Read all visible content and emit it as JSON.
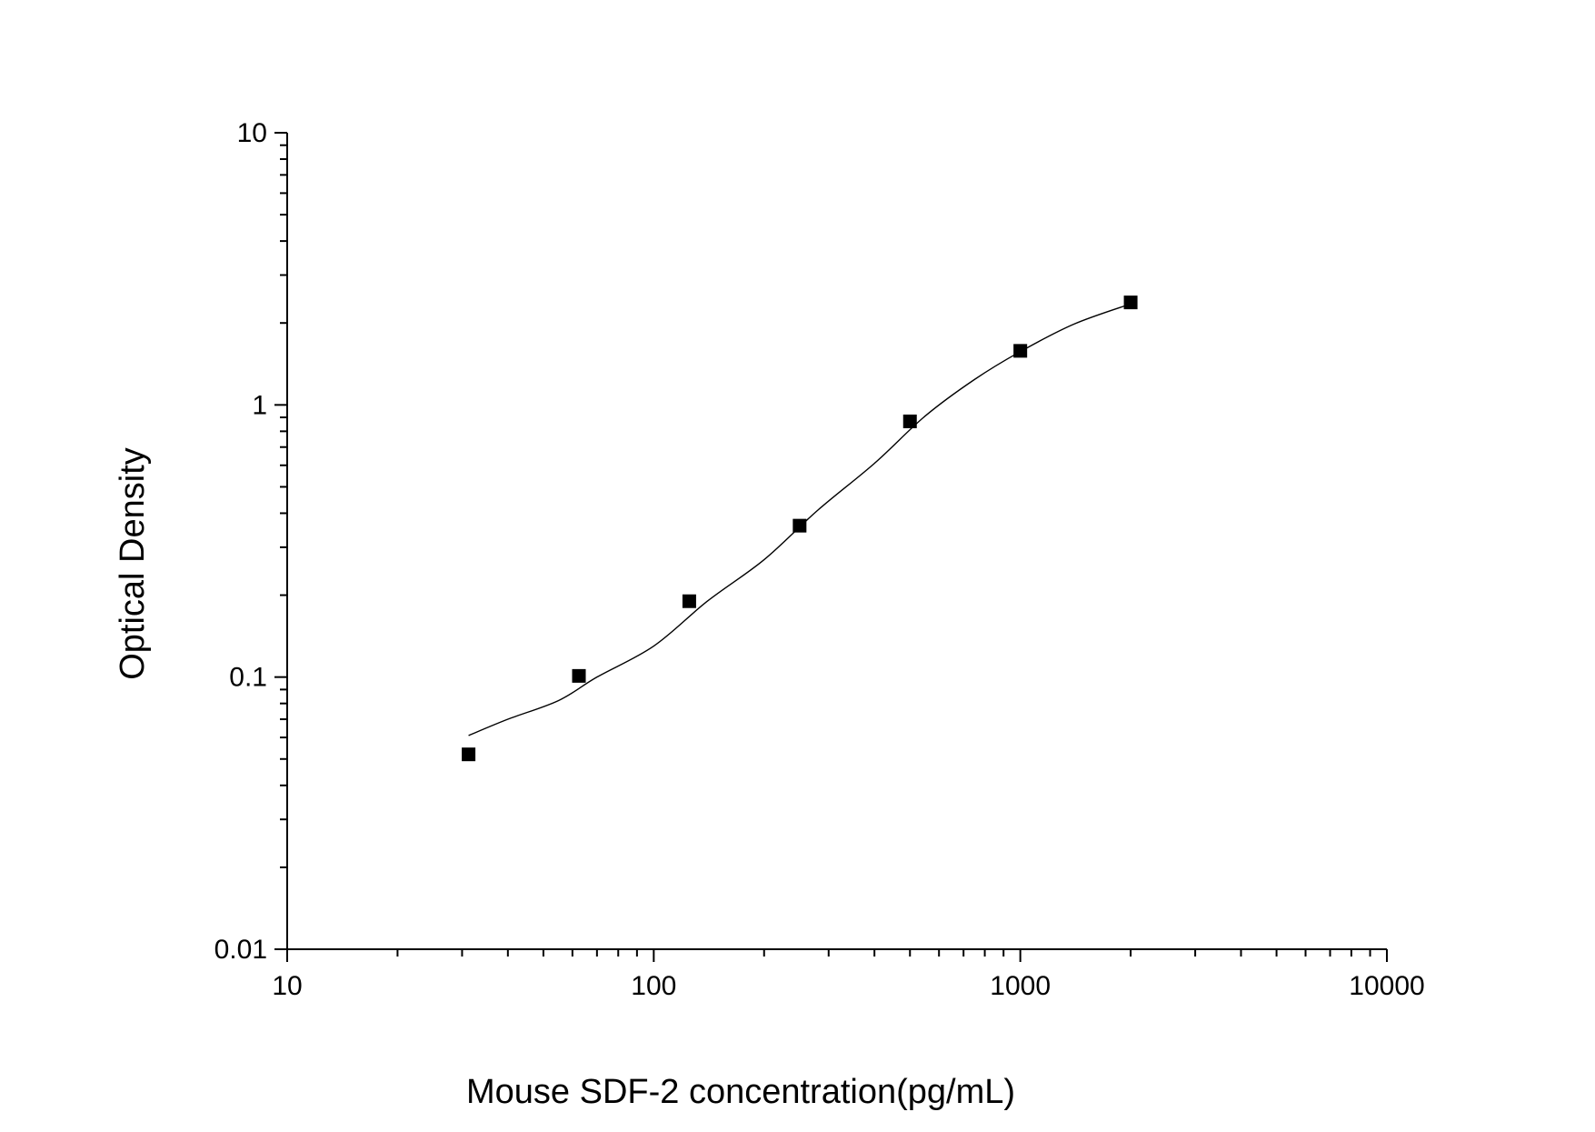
{
  "chart_data": {
    "type": "scatter",
    "xlabel": "Mouse SDF-2 concentration(pg/mL)",
    "ylabel": "Optical Density",
    "xscale": "log",
    "yscale": "log",
    "xlim": [
      10,
      10000
    ],
    "ylim": [
      0.01,
      10
    ],
    "x_ticks": [
      {
        "value": 10,
        "label": "10"
      },
      {
        "value": 100,
        "label": "100"
      },
      {
        "value": 1000,
        "label": "1000"
      },
      {
        "value": 10000,
        "label": "10000"
      }
    ],
    "y_ticks": [
      {
        "value": 0.01,
        "label": "0.01"
      },
      {
        "value": 0.1,
        "label": "0.1"
      },
      {
        "value": 1,
        "label": "1"
      },
      {
        "value": 10,
        "label": "10"
      }
    ],
    "grid": false,
    "legend": "none",
    "series": [
      {
        "marker": "square",
        "color": "#000000",
        "points": [
          {
            "x": 31.25,
            "y": 0.052
          },
          {
            "x": 62.5,
            "y": 0.101
          },
          {
            "x": 125,
            "y": 0.19
          },
          {
            "x": 250,
            "y": 0.36
          },
          {
            "x": 500,
            "y": 0.87
          },
          {
            "x": 1000,
            "y": 1.58
          },
          {
            "x": 2000,
            "y": 2.38
          }
        ]
      }
    ],
    "fit_curve": {
      "color": "#000000",
      "points": [
        {
          "x": 31.25,
          "y": 0.061
        },
        {
          "x": 40,
          "y": 0.07
        },
        {
          "x": 55,
          "y": 0.082
        },
        {
          "x": 70,
          "y": 0.1
        },
        {
          "x": 100,
          "y": 0.13
        },
        {
          "x": 140,
          "y": 0.19
        },
        {
          "x": 200,
          "y": 0.27
        },
        {
          "x": 280,
          "y": 0.41
        },
        {
          "x": 400,
          "y": 0.61
        },
        {
          "x": 550,
          "y": 0.91
        },
        {
          "x": 750,
          "y": 1.24
        },
        {
          "x": 1000,
          "y": 1.57
        },
        {
          "x": 1400,
          "y": 1.98
        },
        {
          "x": 2000,
          "y": 2.35
        }
      ]
    }
  }
}
